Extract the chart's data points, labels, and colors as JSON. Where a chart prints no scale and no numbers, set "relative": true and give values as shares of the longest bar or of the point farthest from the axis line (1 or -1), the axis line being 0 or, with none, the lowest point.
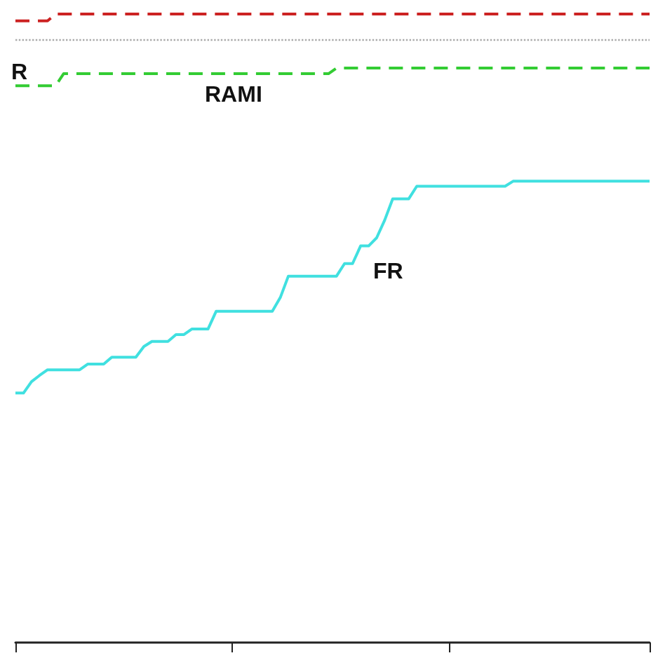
{
  "chart_data": {
    "type": "line",
    "relative": true,
    "categories": [
      null,
      null,
      null,
      null,
      null,
      null,
      null,
      null,
      null,
      null,
      null,
      null,
      null,
      null,
      null,
      null,
      null,
      null,
      null,
      null,
      null,
      null,
      null,
      null,
      null,
      null,
      null,
      null,
      null,
      null,
      null,
      null,
      null,
      null,
      null,
      null,
      null,
      null,
      null,
      null,
      null,
      null,
      null,
      null,
      null,
      null,
      null,
      null,
      null,
      null,
      null,
      null,
      null,
      null,
      null,
      null,
      null,
      null,
      null,
      null,
      null,
      null,
      null,
      null,
      null,
      null,
      null,
      null,
      null,
      null,
      null,
      null,
      null,
      null,
      null,
      null,
      null,
      null,
      null,
      null
    ],
    "grid": false,
    "series": [
      {
        "color": "#cc2222",
        "line_style": "dashed",
        "values": [
          0.989,
          0.989,
          0.989,
          0.989,
          0.989,
          1.0,
          1.0,
          1.0,
          1.0,
          1.0,
          1.0,
          1.0,
          1.0,
          1.0,
          1.0,
          1.0,
          1.0,
          1.0,
          1.0,
          1.0,
          1.0,
          1.0,
          1.0,
          1.0,
          1.0,
          1.0,
          1.0,
          1.0,
          1.0,
          1.0,
          1.0,
          1.0,
          1.0,
          1.0,
          1.0,
          1.0,
          1.0,
          1.0,
          1.0,
          1.0,
          1.0,
          1.0,
          1.0,
          1.0,
          1.0,
          1.0,
          1.0,
          1.0,
          1.0,
          1.0,
          1.0,
          1.0,
          1.0,
          1.0,
          1.0,
          1.0,
          1.0,
          1.0,
          1.0,
          1.0,
          1.0,
          1.0,
          1.0,
          1.0,
          1.0,
          1.0,
          1.0,
          1.0,
          1.0,
          1.0,
          1.0,
          1.0,
          1.0,
          1.0,
          1.0,
          1.0,
          1.0,
          1.0,
          1.0,
          1.0
        ]
      },
      {
        "color": "#33cc33",
        "line_style": "dashed",
        "values": [
          0.886,
          0.886,
          0.886,
          0.886,
          0.886,
          0.886,
          0.905,
          0.905,
          0.905,
          0.905,
          0.905,
          0.905,
          0.905,
          0.905,
          0.905,
          0.905,
          0.905,
          0.905,
          0.905,
          0.905,
          0.905,
          0.905,
          0.905,
          0.905,
          0.905,
          0.905,
          0.905,
          0.905,
          0.905,
          0.905,
          0.905,
          0.905,
          0.905,
          0.905,
          0.905,
          0.905,
          0.905,
          0.905,
          0.905,
          0.905,
          0.914,
          0.914,
          0.914,
          0.914,
          0.914,
          0.914,
          0.914,
          0.914,
          0.914,
          0.914,
          0.914,
          0.914,
          0.914,
          0.914,
          0.914,
          0.914,
          0.914,
          0.914,
          0.914,
          0.914,
          0.914,
          0.914,
          0.914,
          0.914,
          0.914,
          0.914,
          0.914,
          0.914,
          0.914,
          0.914,
          0.914,
          0.914,
          0.914,
          0.914,
          0.914,
          0.914,
          0.914,
          0.914,
          0.914,
          0.914
        ]
      },
      {
        "color": "#40e0e0",
        "line_style": "solid",
        "values": [
          0.397,
          0.397,
          0.415,
          0.425,
          0.434,
          0.434,
          0.434,
          0.434,
          0.434,
          0.443,
          0.443,
          0.443,
          0.454,
          0.454,
          0.454,
          0.454,
          0.471,
          0.479,
          0.479,
          0.479,
          0.49,
          0.49,
          0.499,
          0.499,
          0.499,
          0.527,
          0.527,
          0.527,
          0.527,
          0.527,
          0.527,
          0.527,
          0.527,
          0.549,
          0.583,
          0.583,
          0.583,
          0.583,
          0.583,
          0.583,
          0.583,
          0.603,
          0.603,
          0.631,
          0.631,
          0.644,
          0.672,
          0.706,
          0.706,
          0.706,
          0.726,
          0.726,
          0.726,
          0.726,
          0.726,
          0.726,
          0.726,
          0.726,
          0.726,
          0.726,
          0.726,
          0.726,
          0.734,
          0.734,
          0.734,
          0.734,
          0.734,
          0.734,
          0.734,
          0.734,
          0.734,
          0.734,
          0.734,
          0.734,
          0.734,
          0.734,
          0.734,
          0.734,
          0.734,
          0.734
        ]
      }
    ],
    "ref_lines": [
      {
        "axis": "y",
        "value": 0.961,
        "color": "#aaaaaa",
        "line_style": "dotted"
      }
    ],
    "annotations": [
      "R",
      "RAMI",
      "FR"
    ]
  }
}
